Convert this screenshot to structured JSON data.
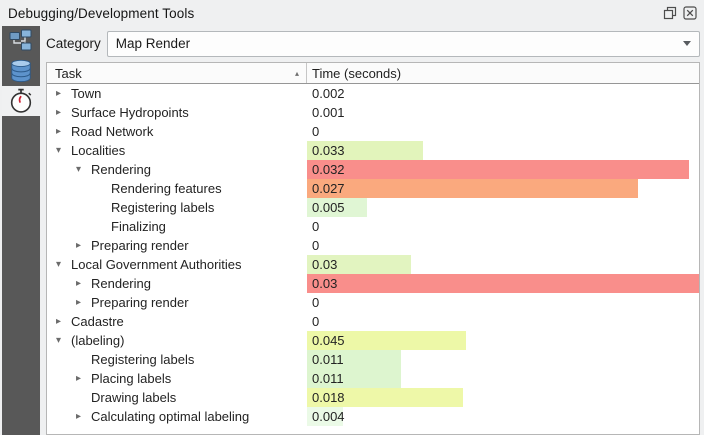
{
  "window": {
    "title": "Debugging/Development Tools"
  },
  "sidebar": {
    "tabs": [
      {
        "icon": "network-logger-icon",
        "active": false
      },
      {
        "icon": "database-icon",
        "active": false
      },
      {
        "icon": "stopwatch-icon",
        "active": true
      }
    ]
  },
  "toolbar": {
    "category_label": "Category",
    "category_value": "Map Render"
  },
  "table": {
    "columns": [
      {
        "label": "Task",
        "sort": "asc",
        "sort_glyph": "▴"
      },
      {
        "label": "Time (seconds)"
      }
    ],
    "rows": [
      {
        "label": "Town",
        "level": 0,
        "arrow": "collapsed",
        "value": "0.002",
        "bar_pct": 0,
        "bar_color": null
      },
      {
        "label": "Surface Hydropoints",
        "level": 0,
        "arrow": "collapsed",
        "value": "0.001",
        "bar_pct": 0,
        "bar_color": null
      },
      {
        "label": "Road Network",
        "level": 0,
        "arrow": "collapsed",
        "value": "0",
        "bar_pct": 0,
        "bar_color": null
      },
      {
        "label": "Localities",
        "level": 0,
        "arrow": "expanded",
        "value": "0.033",
        "bar_pct": 29.6,
        "bar_color": "#e2f4bb"
      },
      {
        "label": "Rendering",
        "level": 1,
        "arrow": "expanded",
        "value": "0.032",
        "bar_pct": 97.4,
        "bar_color": "#f98e8b"
      },
      {
        "label": "Rendering features",
        "level": 2,
        "arrow": "none",
        "value": "0.027",
        "bar_pct": 84.4,
        "bar_color": "#faa97e"
      },
      {
        "label": "Registering labels",
        "level": 2,
        "arrow": "none",
        "value": "0.005",
        "bar_pct": 15.3,
        "bar_color": "#e0f6d4"
      },
      {
        "label": "Finalizing",
        "level": 2,
        "arrow": "none",
        "value": "0",
        "bar_pct": 0,
        "bar_color": null
      },
      {
        "label": "Preparing render",
        "level": 1,
        "arrow": "collapsed",
        "value": "0",
        "bar_pct": 0,
        "bar_color": null
      },
      {
        "label": "Local Government Authorities",
        "level": 0,
        "arrow": "expanded",
        "value": "0.03",
        "bar_pct": 26.5,
        "bar_color": "#e2f4c0"
      },
      {
        "label": "Rendering",
        "level": 1,
        "arrow": "collapsed",
        "value": "0.03",
        "bar_pct": 100,
        "bar_color": "#f98e8b"
      },
      {
        "label": "Preparing render",
        "level": 1,
        "arrow": "collapsed",
        "value": "0",
        "bar_pct": 0,
        "bar_color": null
      },
      {
        "label": "Cadastre",
        "level": 0,
        "arrow": "collapsed",
        "value": "0",
        "bar_pct": 0,
        "bar_color": null
      },
      {
        "label": "(labeling)",
        "level": 0,
        "arrow": "expanded",
        "value": "0.045",
        "bar_pct": 40.6,
        "bar_color": "#edf8a7"
      },
      {
        "label": "Registering labels",
        "level": 1,
        "arrow": "none",
        "value": "0.011",
        "bar_pct": 24.0,
        "bar_color": "#ddf5cf"
      },
      {
        "label": "Placing labels",
        "level": 1,
        "arrow": "collapsed",
        "value": "0.011",
        "bar_pct": 24.0,
        "bar_color": "#ddf5cf"
      },
      {
        "label": "Drawing labels",
        "level": 1,
        "arrow": "none",
        "value": "0.018",
        "bar_pct": 39.8,
        "bar_color": "#eef8a8"
      },
      {
        "label": "Calculating optimal labeling",
        "level": 1,
        "arrow": "collapsed",
        "value": "0.004",
        "bar_pct": 9.2,
        "bar_color": "#ebfae7"
      }
    ]
  }
}
